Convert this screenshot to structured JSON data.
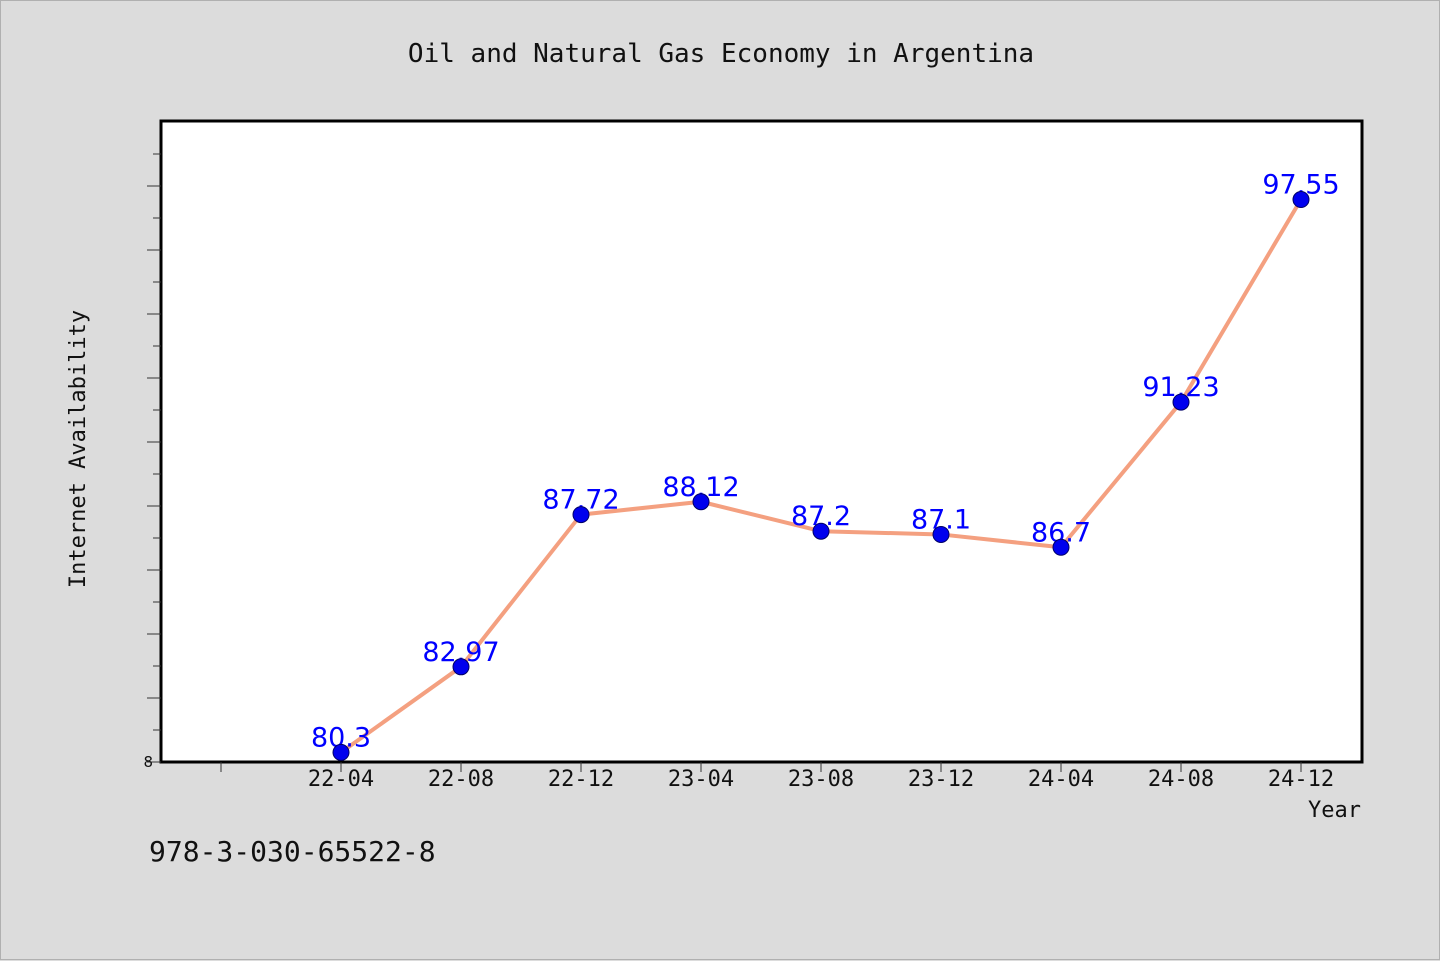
{
  "chart_data": {
    "type": "line",
    "title": "Oil and Natural Gas Economy in Argentina",
    "xlabel": "Year",
    "ylabel": "Internet Availability",
    "categories": [
      "22-04",
      "22-08",
      "22-12",
      "23-04",
      "23-08",
      "23-12",
      "24-04",
      "24-08",
      "24-12"
    ],
    "series": [
      {
        "values": [
          80.3,
          82.97,
          87.72,
          88.12,
          87.2,
          87.1,
          86.7,
          91.23,
          97.55
        ]
      }
    ],
    "data_labels": [
      "80.3",
      "82.97",
      "87.72",
      "88.12",
      "87.2",
      "87.1",
      "86.7",
      "91.23",
      "97.55"
    ],
    "y_tick_label": "8",
    "ylim": [
      80.0,
      100.0
    ],
    "grid": false,
    "line_color": "#f4a080",
    "marker_color": "#0000ee",
    "label_color": "#0000ff"
  },
  "footer": {
    "code": "978-3-030-65522-8"
  }
}
